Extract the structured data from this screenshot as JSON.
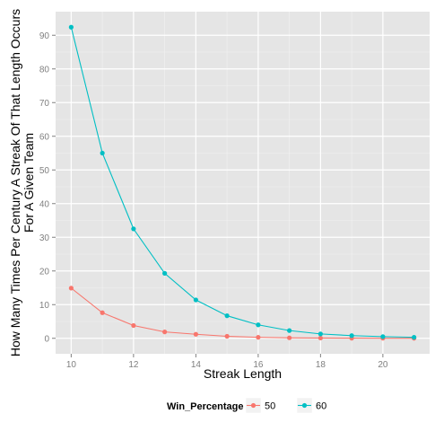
{
  "chart_data": {
    "type": "line",
    "title": "",
    "xlabel": "Streak Length",
    "ylabel_line1": "How Many Times Per Century A Streak Of That Length Occurs",
    "ylabel_line2": "For A Given Team",
    "xlim": [
      9.5,
      21.5
    ],
    "ylim": [
      -4.6,
      97
    ],
    "xticks": [
      10,
      12,
      14,
      16,
      18,
      20
    ],
    "yticks": [
      0,
      10,
      20,
      30,
      40,
      50,
      60,
      70,
      80,
      90
    ],
    "x": [
      10,
      11,
      12,
      13,
      14,
      15,
      16,
      17,
      18,
      19,
      20,
      21
    ],
    "series": [
      {
        "name": "50",
        "color": "#F8766D",
        "values": [
          14.9,
          7.6,
          3.8,
          1.9,
          1.2,
          0.6,
          0.3,
          0.15,
          0.08,
          0.04,
          0.02,
          0.01
        ]
      },
      {
        "name": "60",
        "color": "#00BFC4",
        "values": [
          92.4,
          55.0,
          32.5,
          19.3,
          11.4,
          6.7,
          4.0,
          2.3,
          1.3,
          0.8,
          0.5,
          0.3
        ]
      }
    ],
    "legend": {
      "title": "Win_Percentage",
      "position": "bottom"
    },
    "panel_background": "#E5E5E5",
    "grid": true
  }
}
